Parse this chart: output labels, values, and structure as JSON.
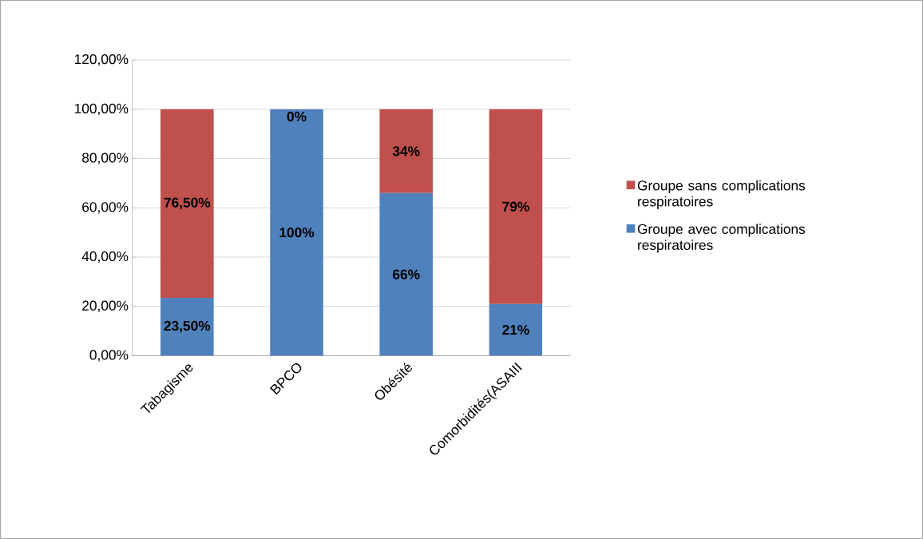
{
  "chart_data": {
    "type": "bar",
    "stacked": true,
    "categories": [
      "Tabagisme",
      "BPCO",
      "Obésité",
      "Comorbidités(ASAIII"
    ],
    "series": [
      {
        "name": "Groupe  avec complications respiratoires",
        "color": "#4f81bd",
        "values": [
          23.5,
          100,
          66,
          21
        ],
        "value_labels": [
          "23,50%",
          "100%",
          "66%",
          "21%"
        ]
      },
      {
        "name": "Groupe sans complications respiratoires",
        "color": "#c0504d",
        "values": [
          76.5,
          0,
          34,
          79
        ],
        "value_labels": [
          "76,50%",
          "0%",
          "34%",
          "79%"
        ]
      }
    ],
    "ylim": [
      0,
      120
    ],
    "yticks": [
      {
        "value": 0,
        "label": "0,00%"
      },
      {
        "value": 20,
        "label": "20,00%"
      },
      {
        "value": 40,
        "label": "40,00%"
      },
      {
        "value": 60,
        "label": "60,00%"
      },
      {
        "value": 80,
        "label": "80,00%"
      },
      {
        "value": 100,
        "label": "100,00%"
      },
      {
        "value": 120,
        "label": "120,00%"
      }
    ],
    "grid": "y",
    "legend": "right"
  }
}
